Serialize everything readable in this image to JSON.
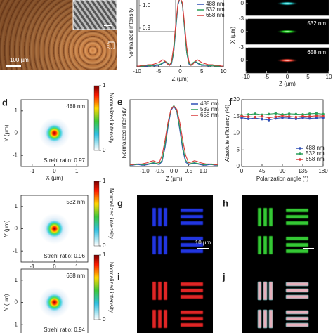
{
  "image_a": {
    "scale_bar": "100 µm"
  },
  "image_c": {
    "x_label": "Z (µm)",
    "y_label": "X (µm)",
    "xlim": [
      -10,
      10
    ],
    "xticks": [
      -10,
      -5,
      0,
      5,
      10
    ],
    "ylim": [
      -3,
      3
    ],
    "frames": [
      {
        "yticks": [
          0
        ]
      },
      {
        "label": "532 nm",
        "yticks": [
          -3,
          0
        ]
      },
      {
        "label": "658 nm",
        "yticks": [
          -3,
          0
        ]
      }
    ]
  },
  "heatmaps": {
    "panel": "d",
    "x_label": "X (µm)",
    "y_label": "Y (µm)",
    "xlim": [
      -1.5,
      1.5
    ],
    "xticks": [
      -1,
      0,
      1
    ],
    "ylim": [
      -1.5,
      1.5
    ],
    "yticks": [
      1,
      0,
      -1
    ],
    "colorbar": {
      "label": "Normalized intensity",
      "lim": [
        0,
        1
      ],
      "ticks": [
        1,
        0
      ]
    },
    "maps": [
      {
        "label": "488 nm",
        "strehl": "Strehl ratio: 0.97"
      },
      {
        "label": "532 nm",
        "strehl": "Strehl ratio: 0.96"
      },
      {
        "label": "658 nm",
        "strehl": "Strehl ratio: 0.94"
      }
    ]
  },
  "bar_images": [
    {
      "panel": "g",
      "scale_bar": "10 µm"
    },
    {
      "panel": "h"
    },
    {
      "panel": "i"
    },
    {
      "panel": "j"
    }
  ],
  "chart_data": [
    {
      "type": "line",
      "x_label": "Z (µm)",
      "y_label": "Normalized intensity",
      "xlim": [
        -10,
        10
      ],
      "xticks": [
        -10,
        -5,
        0,
        5,
        10
      ],
      "ylim": [
        0,
        1.05
      ],
      "legend": "upper right",
      "inset_yticks": [
        {
          "value": 1.0,
          "label": "1.0"
        },
        {
          "value": 0.9,
          "label": "0.9"
        }
      ],
      "x": [
        -10,
        -9.5,
        -9,
        -8.5,
        -8,
        -7.5,
        -7,
        -6.5,
        -6,
        -5.5,
        -5,
        -4.5,
        -4,
        -3.5,
        -3,
        -2.5,
        -2,
        -1.5,
        -1,
        -0.5,
        0,
        0.5,
        1,
        1.5,
        2,
        2.5,
        3,
        3.5,
        4,
        4.5,
        5,
        5.5,
        6,
        6.5,
        7,
        7.5,
        8,
        8.5,
        9,
        9.5,
        10
      ],
      "series": [
        {
          "name": "488 nm",
          "color": "#2f4fb5",
          "values": [
            0.01,
            0.01,
            0.01,
            0.01,
            0.01,
            0.01,
            0.02,
            0.02,
            0.01,
            0.02,
            0.02,
            0.03,
            0.05,
            0.07,
            0.05,
            0.02,
            0.04,
            0.2,
            0.55,
            0.9,
            1.0,
            0.9,
            0.55,
            0.2,
            0.04,
            0.02,
            0.05,
            0.07,
            0.05,
            0.03,
            0.02,
            0.02,
            0.02,
            0.01,
            0.02,
            0.02,
            0.01,
            0.01,
            0.01,
            0.01,
            0.01
          ]
        },
        {
          "name": "532 nm",
          "color": "#2ca05a",
          "values": [
            0.01,
            0.01,
            0.01,
            0.01,
            0.02,
            0.02,
            0.01,
            0.02,
            0.02,
            0.03,
            0.03,
            0.04,
            0.06,
            0.08,
            0.06,
            0.03,
            0.05,
            0.22,
            0.58,
            0.92,
            1.0,
            0.91,
            0.57,
            0.21,
            0.05,
            0.03,
            0.06,
            0.08,
            0.06,
            0.04,
            0.03,
            0.03,
            0.02,
            0.02,
            0.01,
            0.02,
            0.01,
            0.01,
            0.01,
            0.01,
            0.01
          ]
        },
        {
          "name": "658 nm",
          "color": "#d83a3a",
          "values": [
            0.01,
            0.01,
            0.02,
            0.02,
            0.02,
            0.03,
            0.03,
            0.03,
            0.04,
            0.05,
            0.06,
            0.08,
            0.1,
            0.08,
            0.04,
            0.02,
            0.08,
            0.3,
            0.64,
            0.93,
            1.0,
            0.93,
            0.63,
            0.29,
            0.08,
            0.02,
            0.04,
            0.08,
            0.1,
            0.08,
            0.06,
            0.05,
            0.04,
            0.03,
            0.03,
            0.03,
            0.02,
            0.02,
            0.02,
            0.01,
            0.01
          ]
        }
      ]
    },
    {
      "type": "line",
      "panel": "e",
      "x_label": "Z (µm)",
      "y_label": "Normalized intensity",
      "xlim": [
        -1.5,
        1.5
      ],
      "xticks": [
        {
          "value": -1,
          "label": "-1.0"
        },
        {
          "value": -0.5,
          "label": "-0.5"
        },
        {
          "value": 0,
          "label": "0.0"
        },
        {
          "value": 0.5,
          "label": "0.5"
        },
        {
          "value": 1,
          "label": "1.0"
        }
      ],
      "ylim": [
        0,
        1.05
      ],
      "legend": "upper right",
      "x": [
        -1.5,
        -1.4,
        -1.3,
        -1.2,
        -1.1,
        -1.0,
        -0.9,
        -0.8,
        -0.7,
        -0.6,
        -0.5,
        -0.4,
        -0.3,
        -0.2,
        -0.1,
        0,
        0.1,
        0.2,
        0.3,
        0.4,
        0.5,
        0.6,
        0.7,
        0.8,
        0.9,
        1.0,
        1.1,
        1.2,
        1.3,
        1.4,
        1.5
      ],
      "series": [
        {
          "name": "488 nm",
          "color": "#2f4fb5",
          "values": [
            0.02,
            0.02,
            0.03,
            0.03,
            0.02,
            0.02,
            0.03,
            0.04,
            0.05,
            0.04,
            0.03,
            0.08,
            0.3,
            0.62,
            0.88,
            0.95,
            0.86,
            0.58,
            0.27,
            0.07,
            0.03,
            0.04,
            0.05,
            0.04,
            0.03,
            0.02,
            0.02,
            0.03,
            0.03,
            0.02,
            0.02
          ]
        },
        {
          "name": "532 nm",
          "color": "#2ca05a",
          "values": [
            0.02,
            0.03,
            0.03,
            0.04,
            0.03,
            0.03,
            0.04,
            0.05,
            0.06,
            0.05,
            0.04,
            0.1,
            0.35,
            0.66,
            0.9,
            0.96,
            0.88,
            0.62,
            0.32,
            0.1,
            0.04,
            0.05,
            0.06,
            0.05,
            0.04,
            0.03,
            0.03,
            0.04,
            0.03,
            0.03,
            0.02
          ]
        },
        {
          "name": "658 nm",
          "color": "#d83a3a",
          "values": [
            0.03,
            0.03,
            0.04,
            0.04,
            0.04,
            0.05,
            0.06,
            0.08,
            0.09,
            0.07,
            0.06,
            0.18,
            0.42,
            0.7,
            0.9,
            0.95,
            0.9,
            0.7,
            0.42,
            0.18,
            0.06,
            0.07,
            0.09,
            0.08,
            0.06,
            0.05,
            0.04,
            0.04,
            0.04,
            0.03,
            0.03
          ]
        }
      ]
    },
    {
      "type": "line",
      "panel": "f",
      "markers": true,
      "x_label": "Polarization angle (°)",
      "y_label": "Absolute efficiency (%)",
      "xlim": [
        0,
        180
      ],
      "xticks": [
        0,
        45,
        90,
        135,
        180
      ],
      "ylim": [
        0,
        20
      ],
      "yticks": [
        0,
        5,
        10,
        15,
        20
      ],
      "legend": "lower right",
      "x": [
        0,
        15,
        30,
        45,
        60,
        75,
        90,
        105,
        120,
        135,
        150,
        165,
        180
      ],
      "series": [
        {
          "name": "488 nm",
          "color": "#2f4fb5",
          "values": [
            14.6,
            14.3,
            14.5,
            14.2,
            13.9,
            14.4,
            14.6,
            14.5,
            14.3,
            14.6,
            14.4,
            14.5,
            14.6
          ]
        },
        {
          "name": "532 nm",
          "color": "#2ca05a",
          "values": [
            15.4,
            15.6,
            15.8,
            15.5,
            15.7,
            15.9,
            15.6,
            15.8,
            15.7,
            15.6,
            15.8,
            15.9,
            15.7
          ]
        },
        {
          "name": "658 nm",
          "color": "#d83a3a",
          "values": [
            15.1,
            14.9,
            14.8,
            15.0,
            14.6,
            14.9,
            15.2,
            15.0,
            14.8,
            15.1,
            15.0,
            15.2,
            15.1
          ]
        }
      ]
    }
  ]
}
